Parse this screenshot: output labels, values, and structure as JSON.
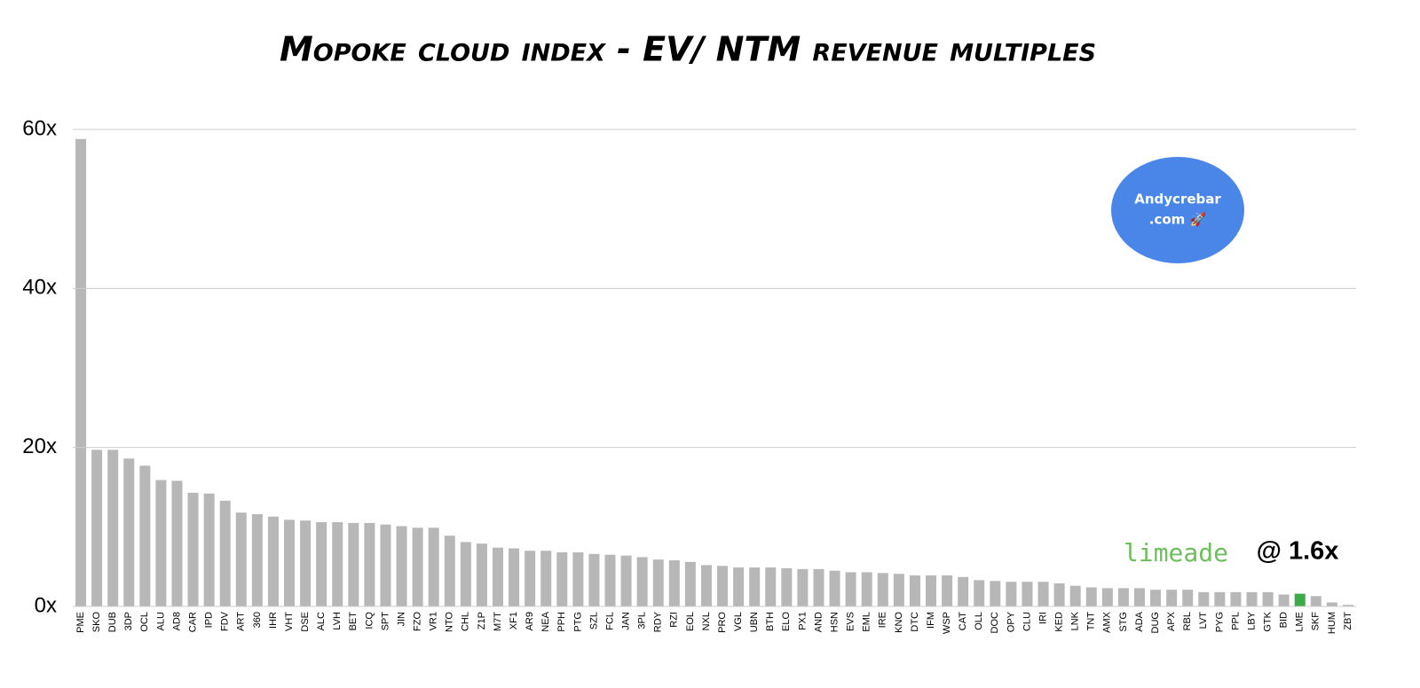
{
  "chart_data": {
    "type": "bar",
    "title": "Mopoke cloud index - EV/ NTM revenue multiples",
    "categories": [
      "PME",
      "SKO",
      "DUB",
      "3DP",
      "OCL",
      "ALU",
      "AD8",
      "CAR",
      "IPD",
      "FDV",
      "ART",
      "360",
      "IHR",
      "VHT",
      "DSE",
      "ALC",
      "LVH",
      "BET",
      "ICQ",
      "SPT",
      "JIN",
      "FZO",
      "VR1",
      "NTO",
      "CHL",
      "Z1P",
      "M7T",
      "XF1",
      "AR9",
      "NEA",
      "PPH",
      "PTG",
      "SZL",
      "FCL",
      "JAN",
      "3PL",
      "RDY",
      "RZI",
      "EOL",
      "NXL",
      "PRO",
      "VGL",
      "UBN",
      "BTH",
      "ELO",
      "PX1",
      "AND",
      "HSN",
      "EVS",
      "EML",
      "IRE",
      "KNO",
      "DTC",
      "IFM",
      "WSP",
      "CAT",
      "OLL",
      "DOC",
      "OPY",
      "CLU",
      "IRI",
      "KED",
      "LNK",
      "TNT",
      "AMX",
      "STG",
      "ADA",
      "DUG",
      "APX",
      "RBL",
      "LVT",
      "PYG",
      "PPL",
      "LBY",
      "GTK",
      "BID",
      "LME",
      "SKF",
      "HUM",
      "ZBT"
    ],
    "values": [
      58.8,
      19.7,
      19.7,
      18.6,
      17.7,
      15.9,
      15.8,
      14.3,
      14.2,
      13.3,
      11.8,
      11.6,
      11.3,
      10.9,
      10.8,
      10.6,
      10.6,
      10.5,
      10.5,
      10.3,
      10.1,
      9.9,
      9.9,
      8.9,
      8.1,
      7.9,
      7.4,
      7.3,
      7.0,
      7.0,
      6.8,
      6.8,
      6.6,
      6.5,
      6.4,
      6.2,
      5.9,
      5.8,
      5.6,
      5.2,
      5.1,
      4.9,
      4.9,
      4.9,
      4.8,
      4.7,
      4.7,
      4.5,
      4.3,
      4.3,
      4.2,
      4.1,
      3.9,
      3.9,
      3.9,
      3.7,
      3.3,
      3.2,
      3.1,
      3.1,
      3.1,
      2.9,
      2.6,
      2.4,
      2.3,
      2.3,
      2.3,
      2.1,
      2.1,
      2.1,
      1.8,
      1.8,
      1.8,
      1.8,
      1.8,
      1.5,
      1.6,
      1.3,
      0.5,
      0.2
    ],
    "colors": [
      "#b7b7b7",
      "#b7b7b7",
      "#b7b7b7",
      "#b7b7b7",
      "#b7b7b7",
      "#b7b7b7",
      "#b7b7b7",
      "#b7b7b7",
      "#b7b7b7",
      "#b7b7b7",
      "#b7b7b7",
      "#b7b7b7",
      "#b7b7b7",
      "#b7b7b7",
      "#b7b7b7",
      "#b7b7b7",
      "#b7b7b7",
      "#b7b7b7",
      "#b7b7b7",
      "#b7b7b7",
      "#b7b7b7",
      "#b7b7b7",
      "#b7b7b7",
      "#b7b7b7",
      "#b7b7b7",
      "#b7b7b7",
      "#b7b7b7",
      "#b7b7b7",
      "#b7b7b7",
      "#b7b7b7",
      "#b7b7b7",
      "#b7b7b7",
      "#b7b7b7",
      "#b7b7b7",
      "#b7b7b7",
      "#b7b7b7",
      "#b7b7b7",
      "#b7b7b7",
      "#b7b7b7",
      "#b7b7b7",
      "#b7b7b7",
      "#b7b7b7",
      "#b7b7b7",
      "#b7b7b7",
      "#b7b7b7",
      "#b7b7b7",
      "#b7b7b7",
      "#b7b7b7",
      "#b7b7b7",
      "#b7b7b7",
      "#b7b7b7",
      "#b7b7b7",
      "#b7b7b7",
      "#b7b7b7",
      "#b7b7b7",
      "#b7b7b7",
      "#b7b7b7",
      "#b7b7b7",
      "#b7b7b7",
      "#b7b7b7",
      "#b7b7b7",
      "#b7b7b7",
      "#b7b7b7",
      "#b7b7b7",
      "#b7b7b7",
      "#b7b7b7",
      "#b7b7b7",
      "#b7b7b7",
      "#b7b7b7",
      "#b7b7b7",
      "#b7b7b7",
      "#b7b7b7",
      "#b7b7b7",
      "#b7b7b7",
      "#b7b7b7",
      "#b7b7b7",
      "#3daa4a",
      "#b7b7b7",
      "#b7b7b7",
      "#b7b7b7"
    ],
    "ylim": [
      0,
      60
    ],
    "yticks": [
      {
        "value": 0,
        "label": "0x"
      },
      {
        "value": 20,
        "label": "20x"
      },
      {
        "value": 40,
        "label": "40x"
      },
      {
        "value": 60,
        "label": "60x"
      }
    ],
    "grid": true,
    "badge": [
      "Andycrebar",
      ".com 🚀"
    ],
    "logo": "limeade",
    "annotation": "@ 1.6x"
  }
}
